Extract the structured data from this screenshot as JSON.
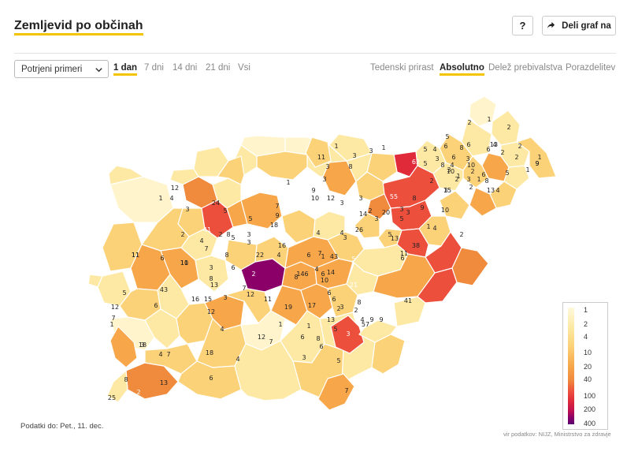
{
  "header": {
    "title": "Zemljevid po občinah",
    "help_label": "?",
    "share_label": "Deli graf na"
  },
  "controls": {
    "select_value": "Potrjeni primeri",
    "periods": [
      "1 dan",
      "7 dni",
      "14 dni",
      "21 dni",
      "Vsi"
    ],
    "active_period": "1 dan",
    "modes": [
      "Tedenski prirast",
      "Absolutno",
      "Delež prebivalstva",
      "Porazdelitev"
    ],
    "active_mode": "Absolutno"
  },
  "map": {
    "region": "Slovenija",
    "municipality_values": [
      "1",
      "2",
      "2",
      "4",
      "2",
      "13",
      "2",
      "1",
      "6",
      "5",
      "6",
      "8",
      "6",
      "2",
      "9",
      "5",
      "4",
      "6",
      "3",
      "3",
      "1",
      "5",
      "3",
      "1",
      "1",
      "4",
      "62",
      "5",
      "9",
      "11",
      "1",
      "3",
      "3",
      "1",
      "10",
      "8",
      "4",
      "10",
      "2",
      "6",
      "3",
      "8",
      "3",
      "8",
      "2",
      "3",
      "2",
      "12",
      "3",
      "9",
      "1",
      "1",
      "4",
      "13",
      "24",
      "55",
      "3",
      "10",
      "15",
      "2",
      "12",
      "3",
      "8",
      "28",
      "14",
      "9",
      "3",
      "20",
      "3",
      "10",
      "3",
      "7",
      "4",
      "11",
      "5",
      "1",
      "2",
      "41",
      "5",
      "5",
      "2",
      "3",
      "9",
      "18",
      "4",
      "5",
      "2",
      "8",
      "13",
      "26",
      "3",
      "38",
      "11",
      "6",
      "5",
      "3",
      "3",
      "11",
      "4",
      "2",
      "11",
      "10",
      "6",
      "7",
      "22",
      "8",
      "4",
      "16",
      "4",
      "6",
      "7",
      "4",
      "5",
      "1",
      "43",
      "14",
      "10",
      "3",
      "8",
      "6",
      "2",
      "8",
      "146",
      "6",
      "21",
      "5",
      "43",
      "15",
      "16",
      "13",
      "7",
      "3",
      "6",
      "11",
      "12",
      "6",
      "3",
      "6",
      "8",
      "2",
      "41",
      "19",
      "17",
      "12",
      "7",
      "2",
      "2",
      "4",
      "9",
      "5",
      "12",
      "1",
      "4",
      "1",
      "13",
      "3",
      "57",
      "9",
      "3",
      "18",
      "18",
      "7",
      "6",
      "5",
      "6",
      "8",
      "3",
      "4",
      "12",
      "7",
      "6",
      "7",
      "4",
      "13",
      "2",
      "8",
      "25",
      "1",
      "9",
      "1"
    ]
  },
  "legend": {
    "ticks": [
      "1",
      "2",
      "4",
      "10",
      "20",
      "40",
      "100",
      "200",
      "400"
    ],
    "scale_colors": {
      "lowest": "#fff8dc",
      "low": "#fcd278",
      "mid": "#f7a74a",
      "high": "#e02a3a",
      "highest": "#5a0070"
    }
  },
  "footer": {
    "data_date": "Podatki do: Pet., 11. dec.",
    "source": "vir podatkov: NIJZ, Ministrstvo za zdravje"
  },
  "icons": {
    "share": "share-arrow-icon",
    "dropdown": "chevron-down-icon"
  }
}
